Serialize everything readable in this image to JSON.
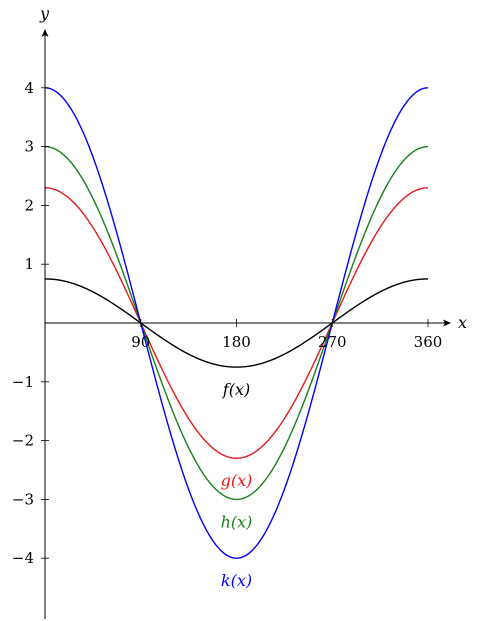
{
  "chart_data": {
    "type": "line",
    "xlabel": "x",
    "ylabel": "y",
    "xlim": [
      0,
      360
    ],
    "ylim": [
      -5,
      5
    ],
    "x_ticks": [
      90,
      180,
      270,
      360
    ],
    "x_tick_labels": [
      "90",
      "180",
      "270",
      "360"
    ],
    "y_ticks": [
      4,
      3,
      2,
      1,
      -1,
      -2,
      -3,
      -4
    ],
    "y_tick_labels": [
      "4",
      "3",
      "2",
      "1",
      "−1",
      "−2",
      "−3",
      "−4"
    ],
    "grid": false,
    "series": [
      {
        "name": "f(x)",
        "color": "#000000",
        "x": [
          0,
          45,
          90,
          135,
          180,
          225,
          270,
          315,
          360
        ],
        "y": [
          0.75,
          0.53,
          0,
          -0.53,
          -0.75,
          -0.53,
          0,
          0.53,
          0.75
        ]
      },
      {
        "name": "g(x)",
        "color": "#e41a1c",
        "x": [
          0,
          45,
          90,
          135,
          180,
          225,
          270,
          315,
          360
        ],
        "y": [
          2.3,
          1.63,
          0,
          -1.63,
          -2.3,
          -1.63,
          0,
          1.63,
          2.3
        ]
      },
      {
        "name": "h(x)",
        "color": "#1a7f1a",
        "x": [
          0,
          45,
          90,
          135,
          180,
          225,
          270,
          315,
          360
        ],
        "y": [
          3,
          2.12,
          0,
          -2.12,
          -3,
          -2.12,
          0,
          2.12,
          3
        ]
      },
      {
        "name": "k(x)",
        "color": "#0000ff",
        "x": [
          0,
          45,
          90,
          135,
          180,
          225,
          270,
          315,
          360
        ],
        "y": [
          4,
          2.83,
          0,
          -2.83,
          -4,
          -2.83,
          0,
          2.83,
          4
        ]
      }
    ]
  }
}
